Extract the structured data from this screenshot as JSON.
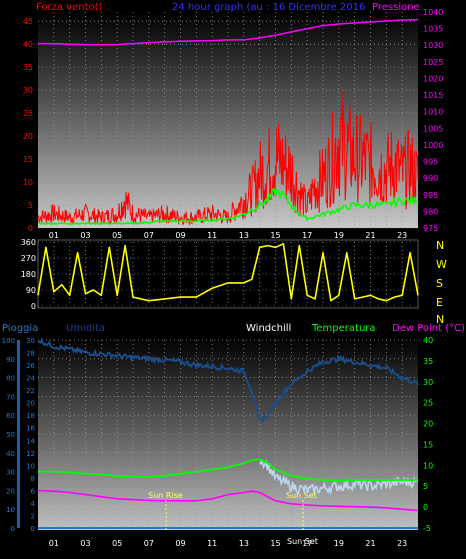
{
  "header": {
    "left_title": "Forza vento()",
    "center_title": "24 hour graph (au : 16 Dicembre 2016",
    "right_title": "Pressione"
  },
  "direction_labels": [
    "N",
    "W",
    "S",
    "E",
    "N"
  ],
  "legend_bottom": {
    "pioggia": "Pioggia",
    "umidita": "Umidita",
    "windchill": "Windchill",
    "temperatura": "Temperatura",
    "dewpoint": "Dew Point (°C)"
  },
  "annotations": {
    "sun_rise": "Sun Rise",
    "sun_set": "Sun Set",
    "sun_set_axis": "Sun Set"
  },
  "colors": {
    "wind": "#ff0000",
    "gust_green": "#00ff00",
    "pressure": "#ff00ff",
    "direction": "#ffff00",
    "humidity": "#1a4f8f",
    "rain": "#1e7ad6",
    "windchill": "#bcd8f0",
    "temperature": "#00ff00",
    "dewpoint": "#ff00ff",
    "title_blue": "#3333ff"
  },
  "chart_data": [
    {
      "type": "line",
      "name": "wind-pressure",
      "x_ticks": [
        "01",
        "03",
        "05",
        "07",
        "09",
        "11",
        "13",
        "15",
        "17",
        "19",
        "21",
        "23"
      ],
      "xlim": [
        0,
        24
      ],
      "ylim_left": [
        0,
        47
      ],
      "ylim_right": [
        975,
        1040
      ],
      "yticks_left": [
        0,
        5,
        10,
        15,
        20,
        25,
        30,
        35,
        40,
        45
      ],
      "yticks_right": [
        975,
        980,
        985,
        990,
        995,
        1000,
        1005,
        1010,
        1015,
        1020,
        1025,
        1030,
        1035,
        1040
      ],
      "series": [
        {
          "x": [
            0,
            1,
            2,
            3,
            4,
            5,
            6,
            7,
            8,
            9,
            10,
            11,
            12,
            13,
            14,
            15,
            16,
            17,
            18,
            19,
            20,
            21,
            22,
            23,
            24
          ],
          "values": [
            1030.5,
            1030.5,
            1030.3,
            1030.2,
            1030.1,
            1030.2,
            1030.5,
            1030.8,
            1031.0,
            1031.2,
            1031.3,
            1031.4,
            1031.6,
            1031.6,
            1032.2,
            1033.0,
            1034.0,
            1035.0,
            1035.9,
            1036.4,
            1036.7,
            1037.0,
            1037.3,
            1037.6,
            1037.7
          ]
        },
        {
          "x": [
            0,
            1,
            2,
            3,
            4,
            5,
            5.5,
            6,
            7,
            8,
            9,
            10,
            11,
            12,
            13,
            13.5,
            14,
            14.5,
            15,
            15.5,
            16,
            16.5,
            17,
            17.5,
            18,
            18.5,
            19,
            19.5,
            20,
            20.5,
            21,
            21.5,
            22,
            22.5,
            23,
            23.5,
            24
          ],
          "values": [
            3,
            4,
            3,
            4,
            3,
            4,
            8,
            4,
            3,
            4,
            3,
            3,
            4,
            3,
            8,
            10,
            15,
            17,
            20,
            18,
            16,
            10,
            6,
            12,
            14,
            18,
            25,
            22,
            20,
            19,
            18,
            17,
            16,
            18,
            15,
            17,
            14
          ]
        },
        {
          "x": [
            0,
            2,
            4,
            6,
            8,
            10,
            12,
            13,
            14,
            14.5,
            15,
            15.5,
            16,
            16.5,
            17,
            18,
            19,
            20,
            21,
            22,
            23,
            24
          ],
          "values": [
            1,
            1,
            1,
            1,
            1.5,
            1.5,
            2,
            3,
            5,
            6,
            8,
            7,
            5,
            3,
            2,
            3,
            4,
            5,
            5,
            5,
            6,
            6
          ]
        }
      ]
    },
    {
      "type": "line",
      "name": "wind-direction",
      "x_ticks": [
        "01",
        "03",
        "05",
        "07",
        "09",
        "11",
        "13",
        "15",
        "17",
        "19",
        "21",
        "23"
      ],
      "xlim": [
        0,
        24
      ],
      "ylim": [
        0,
        360
      ],
      "yticks": [
        0,
        90,
        180,
        270,
        360
      ],
      "series": [
        {
          "x": [
            0,
            0.5,
            1,
            1.5,
            2,
            2.5,
            3,
            3.5,
            4,
            4.5,
            5,
            5.5,
            6,
            7,
            8,
            9,
            10,
            11,
            12,
            13,
            13.5,
            14,
            14.5,
            15,
            15.5,
            16,
            16.5,
            17,
            17.5,
            18,
            18.5,
            19,
            19.5,
            20,
            20.5,
            21,
            21.5,
            22,
            22.5,
            23,
            23.5,
            24
          ],
          "values": [
            60,
            330,
            80,
            120,
            60,
            300,
            70,
            90,
            60,
            330,
            60,
            340,
            50,
            30,
            40,
            50,
            50,
            100,
            130,
            130,
            150,
            330,
            340,
            330,
            350,
            40,
            340,
            60,
            40,
            300,
            30,
            60,
            300,
            40,
            50,
            60,
            40,
            30,
            50,
            60,
            300,
            60
          ]
        }
      ]
    },
    {
      "type": "line",
      "name": "rain-humidity-temperature",
      "x_ticks": [
        "01",
        "03",
        "05",
        "07",
        "09",
        "11",
        "13",
        "15",
        "17",
        "19",
        "21",
        "23"
      ],
      "xlim": [
        0,
        24
      ],
      "ylim_humidity": [
        0,
        100
      ],
      "ylim_rain": [
        0,
        30
      ],
      "ylim_temperature": [
        -5,
        40
      ],
      "yticks_humidity": [
        0,
        10,
        20,
        30,
        40,
        50,
        60,
        70,
        80,
        90,
        100
      ],
      "yticks_rain": [
        0,
        2,
        4,
        6,
        8,
        10,
        12,
        14,
        16,
        18,
        20,
        22,
        24,
        26,
        28,
        30
      ],
      "yticks_temperature": [
        -5,
        0,
        5,
        10,
        15,
        20,
        25,
        30,
        35,
        40
      ],
      "series": [
        {
          "x": [
            0,
            1,
            2,
            3,
            4,
            5,
            6,
            7,
            8,
            9,
            10,
            11,
            12,
            13,
            13.5,
            14,
            14.5,
            15,
            16,
            17,
            18,
            19,
            20,
            21,
            22,
            23,
            24
          ],
          "values": [
            30,
            29,
            28.5,
            28,
            27.8,
            27.5,
            27.2,
            27,
            26.8,
            26.5,
            26,
            25.8,
            25.5,
            25,
            22,
            17,
            18,
            20,
            23,
            25,
            26.5,
            27,
            26.5,
            26,
            25.5,
            24,
            23
          ]
        },
        {
          "x": [
            0,
            1,
            2,
            3,
            4,
            5,
            6,
            7,
            8,
            9,
            10,
            11,
            12,
            13,
            13.5,
            14,
            14.5,
            15,
            16,
            17,
            18,
            19,
            20,
            21,
            22,
            23,
            24
          ],
          "values": [
            8.5,
            8.5,
            8.3,
            8.0,
            7.8,
            7.5,
            7.3,
            7.2,
            7.5,
            8.0,
            8.5,
            9.0,
            9.5,
            10.5,
            11.2,
            11.5,
            10.5,
            9,
            7.5,
            6.8,
            6.5,
            6.3,
            6.5,
            6.5,
            6.5,
            6.5,
            6.5
          ]
        },
        {
          "x": [
            0,
            1,
            2,
            3,
            4,
            5,
            6,
            7,
            8,
            9,
            10,
            11,
            12,
            13,
            13.5,
            14,
            14.5,
            15,
            16,
            17,
            18,
            19,
            20,
            21,
            22,
            23,
            24
          ],
          "values": [
            4.0,
            3.8,
            3.5,
            3.0,
            2.5,
            2.0,
            1.8,
            1.6,
            1.5,
            1.5,
            1.5,
            2.0,
            3.0,
            3.5,
            3.8,
            3.5,
            2.5,
            1.5,
            0.8,
            0.5,
            0.3,
            0.2,
            0.1,
            0.0,
            -0.2,
            -0.5,
            -0.8
          ]
        },
        {
          "x": [
            0,
            14,
            14.5,
            15,
            16,
            17,
            18,
            19,
            20,
            21,
            22,
            23,
            24
          ],
          "values": [
            8.5,
            11.5,
            10,
            7,
            5,
            4,
            4.5,
            5,
            5.5,
            5,
            5.5,
            6,
            6
          ]
        },
        {
          "x": [
            0,
            24
          ],
          "values": [
            0,
            0
          ]
        }
      ]
    }
  ]
}
